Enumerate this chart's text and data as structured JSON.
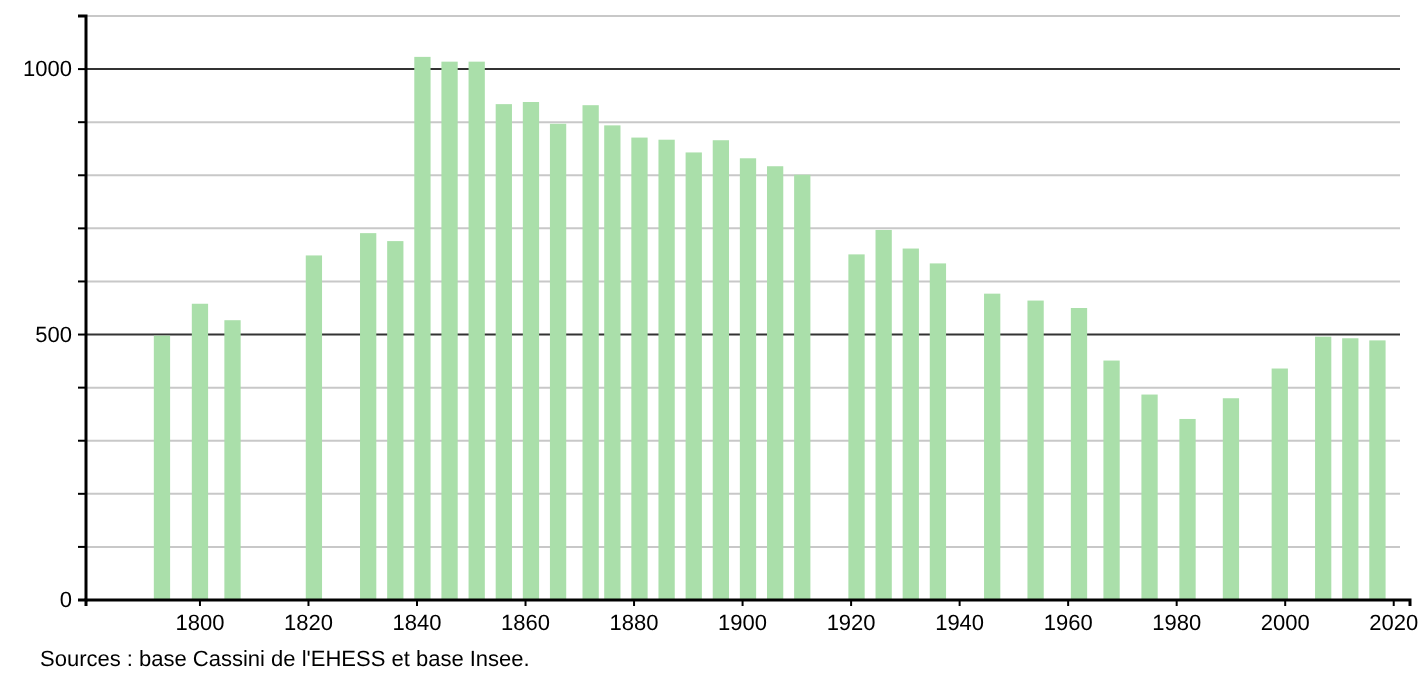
{
  "chart_data": {
    "type": "bar",
    "color": "#aadfaa",
    "x": [
      1793,
      1800,
      1806,
      1821,
      1831,
      1836,
      1841,
      1846,
      1851,
      1856,
      1861,
      1866,
      1872,
      1876,
      1881,
      1886,
      1891,
      1896,
      1901,
      1906,
      1911,
      1921,
      1926,
      1931,
      1936,
      1946,
      1954,
      1962,
      1968,
      1975,
      1982,
      1990,
      1999,
      2007,
      2012,
      2017
    ],
    "values": [
      498,
      558,
      527,
      649,
      691,
      676,
      1023,
      1014,
      1014,
      934,
      938,
      897,
      932,
      894,
      871,
      867,
      843,
      866,
      832,
      817,
      801,
      651,
      697,
      662,
      634,
      577,
      564,
      550,
      451,
      387,
      341,
      380,
      436,
      496,
      493,
      489
    ],
    "xlim": [
      1779,
      2023
    ],
    "xticks": [
      1800,
      1820,
      1840,
      1860,
      1880,
      1900,
      1920,
      1940,
      1960,
      1980,
      2000,
      2020
    ],
    "ylim": [
      0,
      1100
    ],
    "yticks": [
      0,
      {
        "value": 100,
        "label": null
      },
      {
        "value": 200,
        "label": null
      },
      {
        "value": 300,
        "label": null
      },
      {
        "value": 400,
        "label": null
      },
      500,
      {
        "value": 600,
        "label": null
      },
      {
        "value": 700,
        "label": null
      },
      {
        "value": 800,
        "label": null
      },
      {
        "value": 900,
        "label": null
      },
      1000,
      {
        "value": 1100,
        "label": null
      }
    ],
    "grid": "y",
    "annotations": [
      "Sources : base Cassini de l'EHESS et base Insee."
    ]
  }
}
